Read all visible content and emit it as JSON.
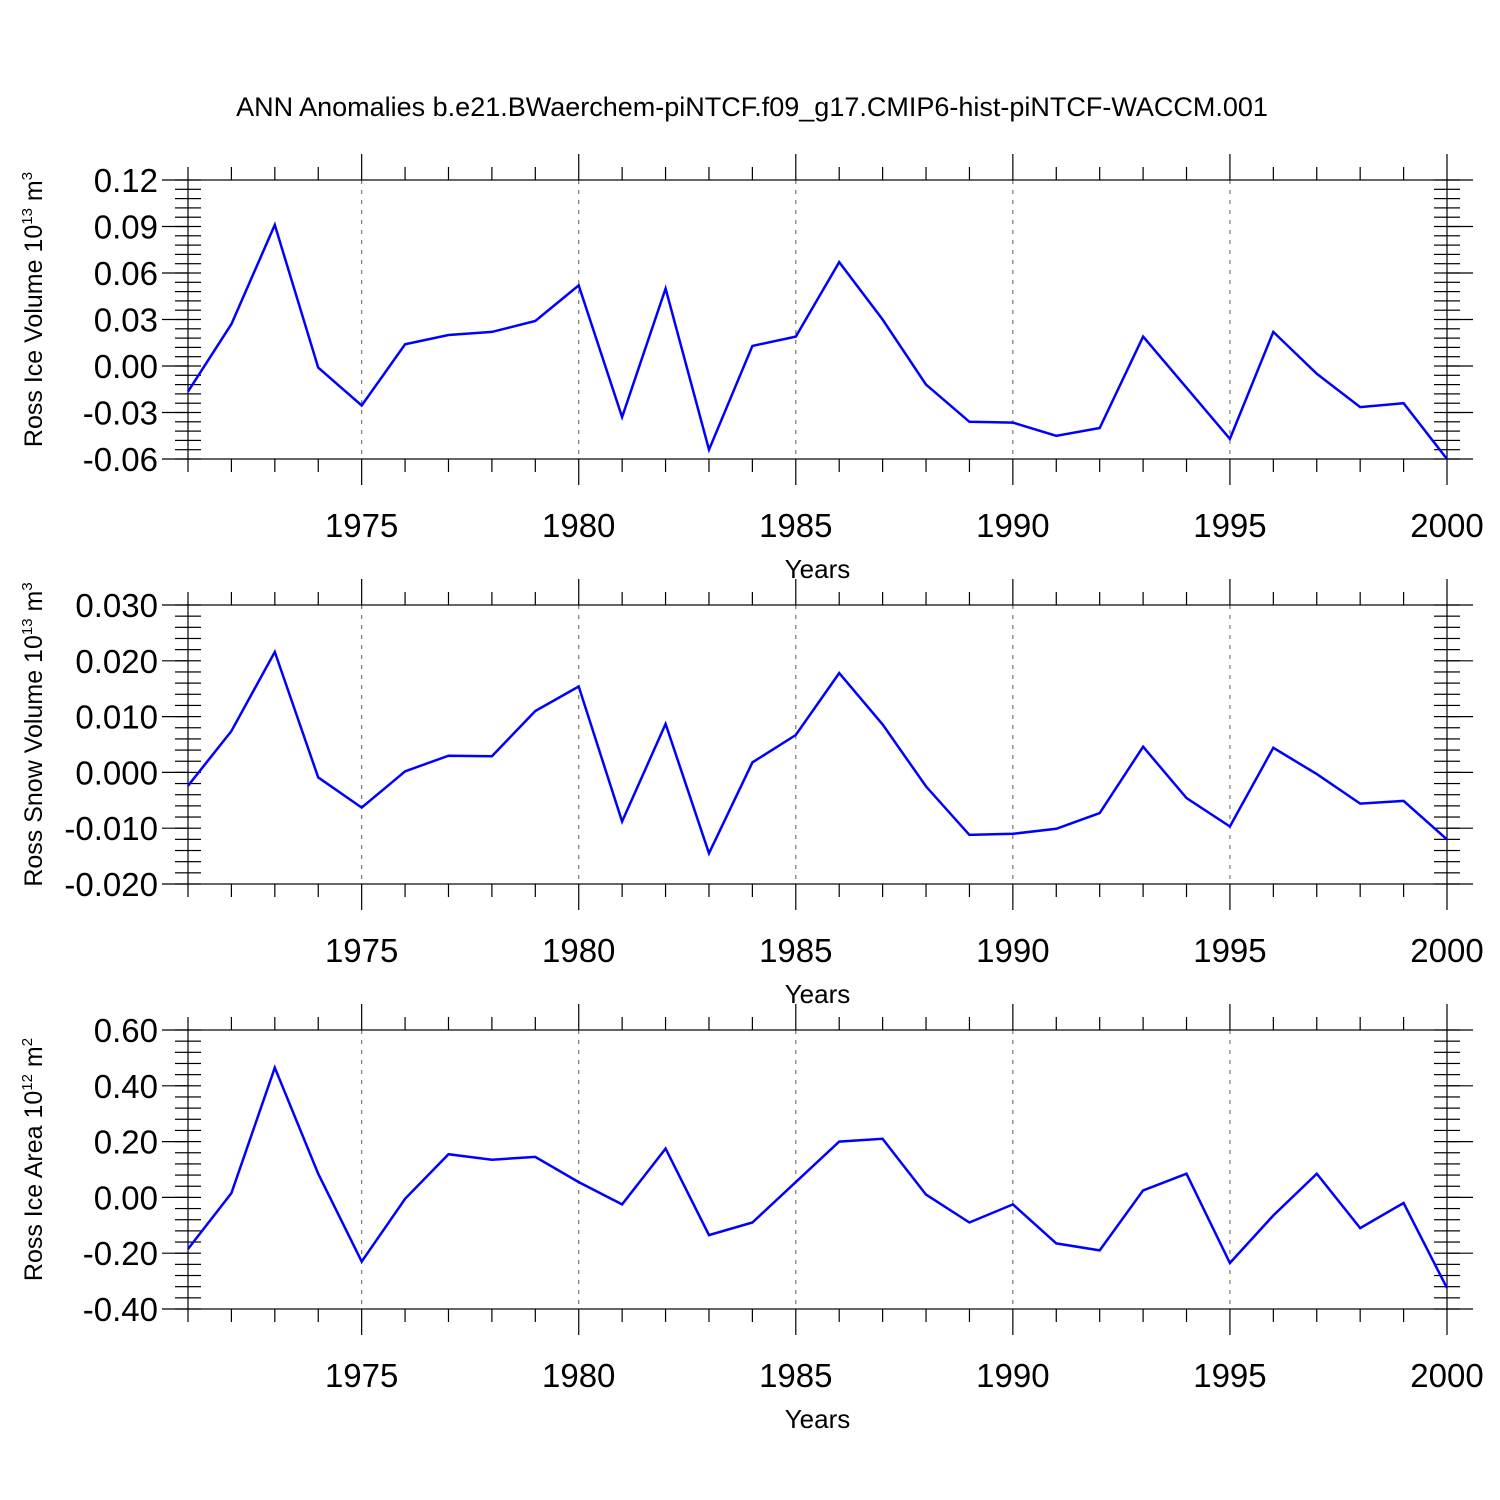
{
  "title": "ANN Anomalies b.e21.BWaerchem-piNTCF.f09_g17.CMIP6-hist-piNTCF-WACCM.001",
  "colors": {
    "line": "#0000ff",
    "grid": "#777777",
    "axis": "#000000"
  },
  "chart_data": [
    {
      "type": "line",
      "ylabel_main": "Ross Ice Volume 10",
      "ylabel_exp": "13",
      "ylabel_unit": " m",
      "ylabel_unit_exp": "3",
      "xlabel": "Years",
      "xlim": [
        1971,
        2000
      ],
      "ylim": [
        -0.06,
        0.12
      ],
      "yticks": [
        -0.06,
        -0.03,
        0.0,
        0.03,
        0.06,
        0.09,
        0.12
      ],
      "ytick_labels": [
        "-0.06",
        "-0.03",
        "0.00",
        "0.03",
        "0.06",
        "0.09",
        "0.12"
      ],
      "yminor_step": 0.006,
      "xticks": [
        1975,
        1980,
        1985,
        1990,
        1995,
        2000
      ],
      "xtick_labels": [
        "1975",
        "1980",
        "1985",
        "1990",
        "1995",
        "2000"
      ],
      "grid": "vertical dashed at major x ticks",
      "series": [
        {
          "x": [
            1971,
            1972,
            1973,
            1974,
            1975,
            1976,
            1977,
            1978,
            1979,
            1980,
            1981,
            1982,
            1983,
            1984,
            1985,
            1986,
            1987,
            1988,
            1989,
            1990,
            1991,
            1992,
            1993,
            1994,
            1995,
            1996,
            1997,
            1998,
            1999,
            2000
          ],
          "values": [
            -0.0165,
            0.027,
            0.091,
            -0.001,
            -0.0255,
            0.014,
            0.02,
            0.022,
            0.029,
            0.052,
            -0.033,
            0.05,
            -0.054,
            0.013,
            0.019,
            0.067,
            0.03,
            -0.012,
            -0.036,
            -0.0365,
            -0.045,
            -0.04,
            0.019,
            -0.014,
            -0.047,
            0.022,
            -0.005,
            -0.0265,
            -0.024,
            -0.06
          ]
        }
      ]
    },
    {
      "type": "line",
      "ylabel_main": "Ross Snow Volume 10",
      "ylabel_exp": "13",
      "ylabel_unit": " m",
      "ylabel_unit_exp": "3",
      "xlabel": "Years",
      "xlim": [
        1971,
        2000
      ],
      "ylim": [
        -0.02,
        0.03
      ],
      "yticks": [
        -0.02,
        -0.01,
        0.0,
        0.01,
        0.02,
        0.03
      ],
      "ytick_labels": [
        "-0.020",
        "-0.010",
        "0.000",
        "0.010",
        "0.020",
        "0.030"
      ],
      "yminor_step": 0.002,
      "xticks": [
        1975,
        1980,
        1985,
        1990,
        1995,
        2000
      ],
      "xtick_labels": [
        "1975",
        "1980",
        "1985",
        "1990",
        "1995",
        "2000"
      ],
      "grid": "vertical dashed at major x ticks",
      "series": [
        {
          "x": [
            1971,
            1972,
            1973,
            1974,
            1975,
            1976,
            1977,
            1978,
            1979,
            1980,
            1981,
            1982,
            1983,
            1984,
            1985,
            1986,
            1987,
            1988,
            1989,
            1990,
            1991,
            1992,
            1993,
            1994,
            1995,
            1996,
            1997,
            1998,
            1999,
            2000
          ],
          "values": [
            -0.0024,
            0.0074,
            0.0216,
            -0.0009,
            -0.0063,
            0.0002,
            0.003,
            0.0029,
            0.011,
            0.0154,
            -0.0088,
            0.0087,
            -0.0145,
            0.0018,
            0.0067,
            0.0178,
            0.0086,
            -0.0025,
            -0.0112,
            -0.011,
            -0.0101,
            -0.0073,
            0.0046,
            -0.0046,
            -0.0097,
            0.0044,
            -0.0003,
            -0.0056,
            -0.0051,
            -0.012
          ]
        }
      ]
    },
    {
      "type": "line",
      "ylabel_main": "Ross Ice Area 10",
      "ylabel_exp": "12",
      "ylabel_unit": " m",
      "ylabel_unit_exp": "2",
      "xlabel": "Years",
      "xlim": [
        1971,
        2000
      ],
      "ylim": [
        -0.4,
        0.6
      ],
      "yticks": [
        -0.4,
        -0.2,
        0.0,
        0.2,
        0.4,
        0.6
      ],
      "ytick_labels": [
        "-0.40",
        "-0.20",
        "0.00",
        "0.20",
        "0.40",
        "0.60"
      ],
      "yminor_step": 0.04,
      "xticks": [
        1975,
        1980,
        1985,
        1990,
        1995,
        2000
      ],
      "xtick_labels": [
        "1975",
        "1980",
        "1985",
        "1990",
        "1995",
        "2000"
      ],
      "grid": "vertical dashed at major x ticks",
      "series": [
        {
          "x": [
            1971,
            1972,
            1973,
            1974,
            1975,
            1976,
            1977,
            1978,
            1979,
            1980,
            1981,
            1982,
            1983,
            1984,
            1985,
            1986,
            1987,
            1988,
            1989,
            1990,
            1991,
            1992,
            1993,
            1994,
            1995,
            1996,
            1997,
            1998,
            1999,
            2000
          ],
          "values": [
            -0.185,
            0.015,
            0.465,
            0.085,
            -0.23,
            -0.005,
            0.155,
            0.135,
            0.145,
            0.055,
            -0.025,
            0.175,
            -0.135,
            -0.09,
            0.055,
            0.2,
            0.21,
            0.01,
            -0.09,
            -0.025,
            -0.165,
            -0.19,
            0.025,
            0.085,
            -0.235,
            -0.065,
            0.085,
            -0.11,
            -0.02,
            -0.325
          ]
        }
      ]
    }
  ]
}
